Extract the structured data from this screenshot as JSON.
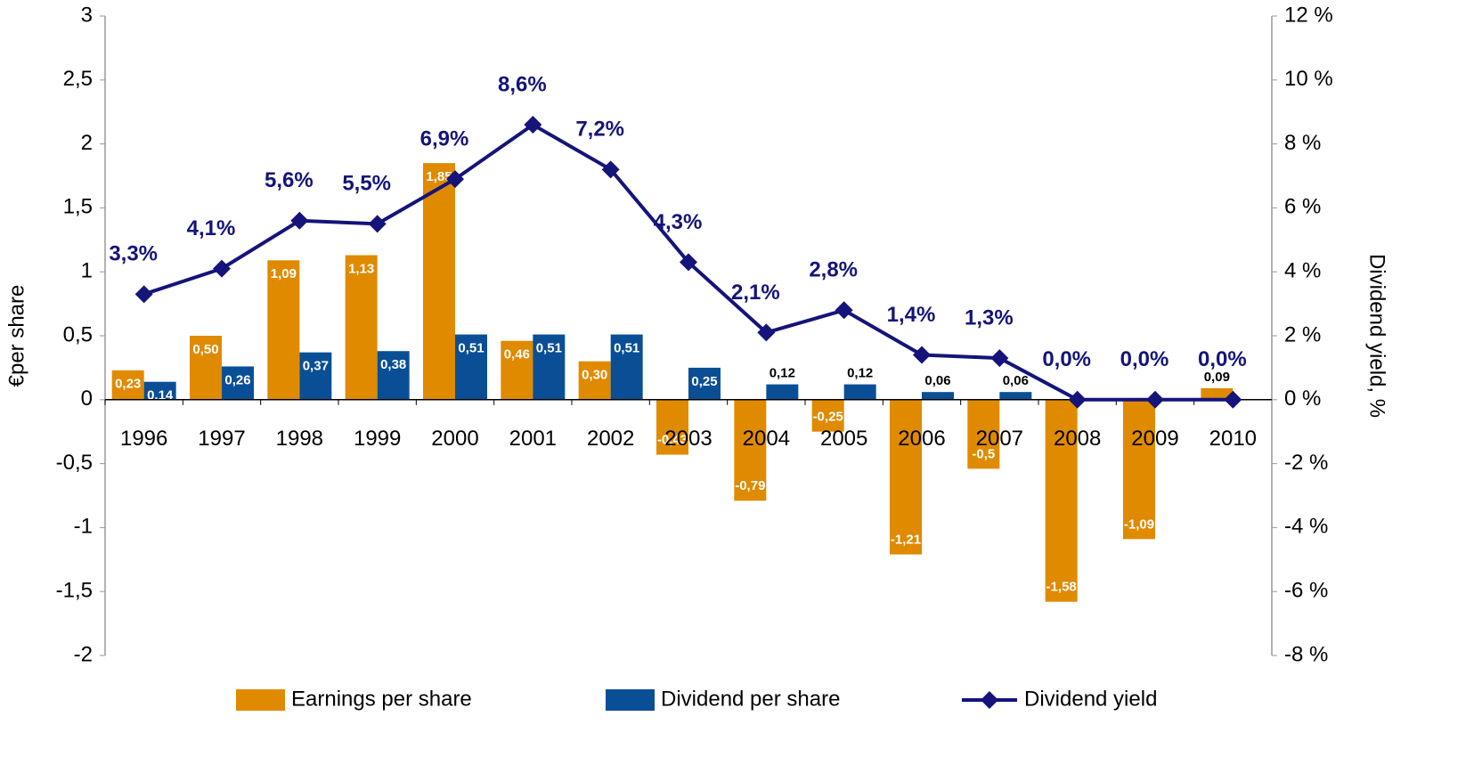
{
  "chart_data": {
    "type": "bar-line",
    "y_label": "€per share",
    "y2_label": "Dividend yield, %",
    "categories": [
      "1996",
      "1997",
      "1998",
      "1999",
      "2000",
      "2001",
      "2002",
      "2003",
      "2004",
      "2005",
      "2006",
      "2007",
      "2008",
      "2009",
      "2010"
    ],
    "series": [
      {
        "name": "Earnings per share",
        "type": "bar",
        "color": "#e08a00",
        "values": [
          0.23,
          0.5,
          1.09,
          1.13,
          1.85,
          0.46,
          0.3,
          -0.43,
          -0.79,
          -0.25,
          -1.21,
          -0.54,
          -1.58,
          -1.09,
          0.09
        ],
        "value_labels": [
          "0,23",
          "0,50",
          "1,09",
          "1,13",
          "1,85",
          "0,46",
          "0,30",
          "-0,43",
          "-0,79",
          "-0,25",
          "-1,21",
          "-0,5",
          "-1,58",
          "-1,09",
          "0,09"
        ]
      },
      {
        "name": "Dividend per share",
        "type": "bar",
        "color": "#0a4f96",
        "values": [
          0.14,
          0.26,
          0.37,
          0.38,
          0.51,
          0.51,
          0.51,
          0.25,
          0.12,
          0.12,
          0.06,
          0.06,
          null,
          null,
          null
        ],
        "value_labels": [
          "0,14",
          "0,26",
          "0,37",
          "0,38",
          "0,51",
          "0,51",
          "0,51",
          "0,25",
          "0,12",
          "0,12",
          "0,06",
          "0,06",
          null,
          null,
          null
        ]
      },
      {
        "name": "Dividend yield",
        "type": "line",
        "axis": "y2",
        "color": "#14147a",
        "values": [
          3.3,
          4.1,
          5.6,
          5.5,
          6.9,
          8.6,
          7.2,
          4.3,
          2.1,
          2.8,
          1.4,
          1.3,
          0,
          0,
          0
        ],
        "value_labels": [
          "3,3%",
          "4,1%",
          "5,6%",
          "5,5%",
          "6,9%",
          "8,6%",
          "7,2%",
          "4,3%",
          "2,1%",
          "2,8%",
          "1,4%",
          "1,3%",
          "0,0%",
          "0,0%",
          "0,0%"
        ]
      }
    ],
    "ylim": [
      -2,
      3
    ],
    "yticks": [
      3,
      {
        "value": 2.5,
        "label": "2,5"
      },
      2,
      {
        "value": 1.5,
        "label": "1,5"
      },
      1,
      {
        "value": 0.5,
        "label": "0,5"
      },
      0,
      {
        "value": -0.5,
        "label": "-0,5"
      },
      -1,
      {
        "value": -1.5,
        "label": "-1,5"
      },
      -2
    ],
    "y2lim": [
      -8,
      12
    ],
    "y2ticks": [
      {
        "value": 12,
        "label": "12 %"
      },
      {
        "value": 10,
        "label": "10 %"
      },
      {
        "value": 8,
        "label": "8 %"
      },
      {
        "value": 6,
        "label": "6 %"
      },
      {
        "value": 4,
        "label": "4 %"
      },
      {
        "value": 2,
        "label": "2 %"
      },
      {
        "value": 0,
        "label": "0 %"
      },
      {
        "value": -2,
        "label": "-2 %"
      },
      {
        "value": -4,
        "label": "-4 %"
      },
      {
        "value": -6,
        "label": "-6 %"
      },
      {
        "value": -8,
        "label": "-8 %"
      }
    ],
    "legend": "bottom"
  }
}
